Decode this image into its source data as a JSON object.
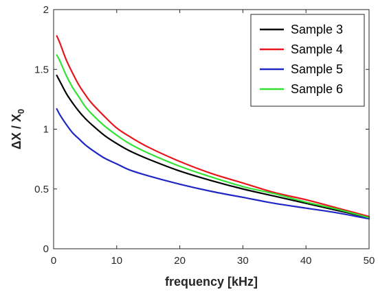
{
  "chart_data": {
    "type": "line",
    "title": "",
    "xlabel": "frequency [kHz]",
    "ylabel_main": "ΔX / X",
    "ylabel_sub": "0",
    "xlim": [
      0,
      50
    ],
    "ylim": [
      0,
      2
    ],
    "xticks": [
      0,
      10,
      20,
      30,
      40,
      50
    ],
    "xtick_labels": [
      "0",
      "10",
      "20",
      "30",
      "40",
      "50"
    ],
    "yticks": [
      0,
      0.5,
      1,
      1.5,
      2
    ],
    "ytick_labels": [
      "0",
      "0.5",
      "1",
      "1.5",
      "2"
    ],
    "grid": false,
    "legend_position": "top-right",
    "x": [
      0.5,
      1,
      2,
      3,
      4,
      5,
      6,
      8,
      10,
      12,
      15,
      20,
      25,
      30,
      35,
      40,
      45,
      50
    ],
    "series": [
      {
        "name": "Sample 3",
        "color": "#000000",
        "values": [
          1.45,
          1.4,
          1.3,
          1.22,
          1.15,
          1.09,
          1.04,
          0.95,
          0.88,
          0.82,
          0.75,
          0.65,
          0.57,
          0.5,
          0.44,
          0.38,
          0.32,
          0.26
        ]
      },
      {
        "name": "Sample 4",
        "color": "#e8141b",
        "values": [
          1.78,
          1.72,
          1.58,
          1.47,
          1.37,
          1.29,
          1.22,
          1.11,
          1.01,
          0.94,
          0.85,
          0.73,
          0.63,
          0.55,
          0.47,
          0.41,
          0.34,
          0.27
        ]
      },
      {
        "name": "Sample 5",
        "color": "#1f26c4",
        "values": [
          1.17,
          1.12,
          1.04,
          0.97,
          0.92,
          0.87,
          0.83,
          0.76,
          0.71,
          0.66,
          0.61,
          0.54,
          0.48,
          0.43,
          0.38,
          0.34,
          0.3,
          0.25
        ]
      },
      {
        "name": "Sample 6",
        "color": "#33e133",
        "values": [
          1.62,
          1.57,
          1.45,
          1.35,
          1.27,
          1.19,
          1.13,
          1.03,
          0.95,
          0.88,
          0.8,
          0.69,
          0.6,
          0.52,
          0.46,
          0.39,
          0.33,
          0.26
        ]
      }
    ]
  }
}
